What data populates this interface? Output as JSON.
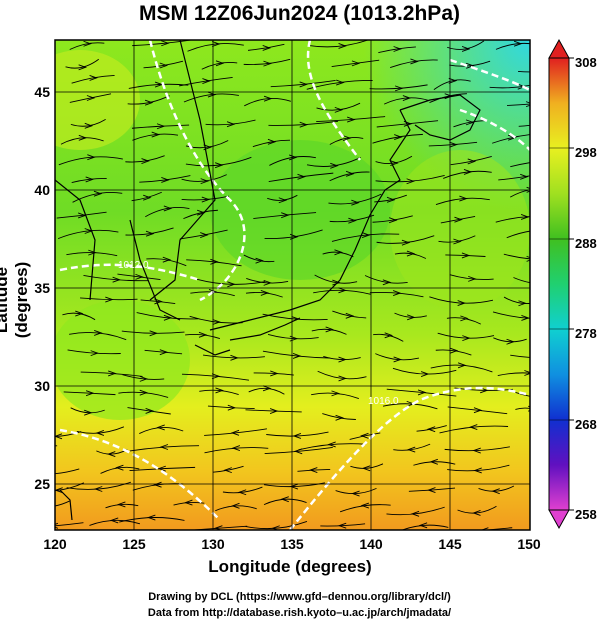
{
  "title": "MSM 12Z06Jun2024 (1013.2hPa)",
  "xlabel": "Longitude (degrees)",
  "ylabel": "Latitude  (degrees)",
  "credit_line1": "Drawing by DCL (https://www.gfd–dennou.org/library/dcl/)",
  "credit_line2": "Data from http://database.rish.kyoto–u.ac.jp/arch/jmadata/",
  "chart_data": {
    "type": "heatmap",
    "x_ticks": [
      "120",
      "125",
      "130",
      "135",
      "140",
      "145",
      "150"
    ],
    "y_ticks": [
      "25",
      "30",
      "35",
      "40",
      "45"
    ],
    "xlim": [
      120,
      150
    ],
    "ylim": [
      22.5,
      47.5
    ],
    "colorbar": {
      "ticks": [
        "258",
        "268",
        "278",
        "288",
        "298",
        "308"
      ],
      "range": [
        258,
        308
      ],
      "colors": [
        "#e040d0",
        "#6010c0",
        "#1030d0",
        "#1090e0",
        "#10d0d0",
        "#20d070",
        "#40c020",
        "#a0e020",
        "#e8f020",
        "#f0b020",
        "#f07020",
        "#e02020"
      ]
    },
    "contour_labels": [
      "1012.0",
      "1016.0"
    ]
  }
}
